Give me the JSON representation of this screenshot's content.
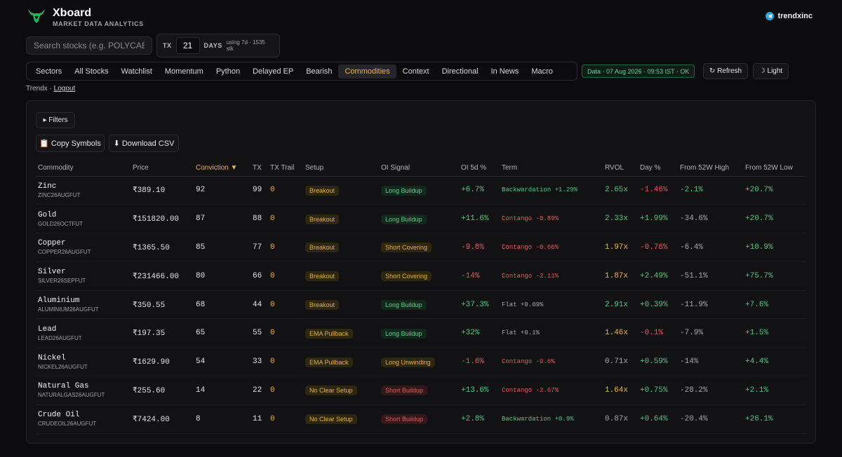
{
  "brand": {
    "name": "Xboard",
    "tagline": "MARKET DATA ANALYTICS",
    "handle": "trendxinc"
  },
  "search": {
    "placeholder": "Search stocks (e.g. POLYCAB).."
  },
  "tx": {
    "label": "TX",
    "value": "21",
    "days_label": "DAYS",
    "note": "using 7d · 1535 stk"
  },
  "nav": {
    "tabs": [
      "Sectors",
      "All Stocks",
      "Watchlist",
      "Momentum",
      "Python",
      "Delayed EP",
      "Bearish",
      "Commodities",
      "Context",
      "Directional",
      "In News",
      "Macro"
    ],
    "active": "Commodities"
  },
  "status": {
    "data": "Data · 07 Aug 2026 · 09:53 IST · OK"
  },
  "actions": {
    "refresh": "↻ Refresh",
    "light": "☽ Light",
    "filters": "▸ Filters",
    "copy": "📋 Copy Symbols",
    "csv": "⬇ Download CSV"
  },
  "user": {
    "prefix": "Trendx · ",
    "logout": "Logout"
  },
  "table": {
    "headers": [
      "Commodity",
      "Price",
      "Conviction ▼",
      "TX",
      "TX Trail",
      "Setup",
      "OI Signal",
      "OI 5d %",
      "Term",
      "RVOL",
      "Day %",
      "From 52W High",
      "From 52W Low"
    ],
    "rows": [
      {
        "name": "Zinc",
        "symbol": "ZINC26AUGFUT",
        "price": "₹389.10",
        "conviction": "92",
        "tx": "99",
        "trail": "0",
        "setup": "Breakout",
        "oi": "Long Buildup",
        "oi5d": "+6.7%",
        "term": "Backwardation +1.29%",
        "rvol": "2.65x",
        "day": "-1.46%",
        "high": "-2.1%",
        "low": "+20.7%"
      },
      {
        "name": "Gold",
        "symbol": "GOLD26OCTFUT",
        "price": "₹151820.00",
        "conviction": "87",
        "tx": "88",
        "trail": "0",
        "setup": "Breakout",
        "oi": "Long Buildup",
        "oi5d": "+11.6%",
        "term": "Contango -0.89%",
        "rvol": "2.33x",
        "day": "+1.99%",
        "high": "-34.6%",
        "low": "+20.7%"
      },
      {
        "name": "Copper",
        "symbol": "COPPER26AUGFUT",
        "price": "₹1365.50",
        "conviction": "85",
        "tx": "77",
        "trail": "0",
        "setup": "Breakout",
        "oi": "Short Covering",
        "oi5d": "-9.8%",
        "term": "Contango -0.66%",
        "rvol": "1.97x",
        "day": "-0.76%",
        "high": "-6.4%",
        "low": "+10.9%"
      },
      {
        "name": "Silver",
        "symbol": "SILVER26SEPFUT",
        "price": "₹231466.00",
        "conviction": "80",
        "tx": "66",
        "trail": "0",
        "setup": "Breakout",
        "oi": "Short Covering",
        "oi5d": "-14%",
        "term": "Contango -2.11%",
        "rvol": "1.87x",
        "day": "+2.49%",
        "high": "-51.1%",
        "low": "+75.7%"
      },
      {
        "name": "Aluminium",
        "symbol": "ALUMINIUM26AUGFUT",
        "price": "₹350.55",
        "conviction": "68",
        "tx": "44",
        "trail": "0",
        "setup": "Breakout",
        "oi": "Long Buildup",
        "oi5d": "+37.3%",
        "term": "Flat +0.09%",
        "rvol": "2.91x",
        "day": "+0.39%",
        "high": "-11.9%",
        "low": "+7.6%"
      },
      {
        "name": "Lead",
        "symbol": "LEAD26AUGFUT",
        "price": "₹197.35",
        "conviction": "65",
        "tx": "55",
        "trail": "0",
        "setup": "EMA Pullback",
        "oi": "Long Buildup",
        "oi5d": "+32%",
        "term": "Flat +0.1%",
        "rvol": "1.46x",
        "day": "-0.1%",
        "high": "-7.9%",
        "low": "+1.5%"
      },
      {
        "name": "Nickel",
        "symbol": "NICKEL26AUGFUT",
        "price": "₹1629.90",
        "conviction": "54",
        "tx": "33",
        "trail": "0",
        "setup": "EMA Pullback",
        "oi": "Long Unwinding",
        "oi5d": "-1.6%",
        "term": "Contango -0.6%",
        "rvol": "0.71x",
        "day": "+0.59%",
        "high": "-14%",
        "low": "+4.4%"
      },
      {
        "name": "Natural Gas",
        "symbol": "NATURALGAS26AUGFUT",
        "price": "₹255.60",
        "conviction": "14",
        "tx": "22",
        "trail": "0",
        "setup": "No Clear Setup",
        "oi": "Short Buildup",
        "oi5d": "+13.6%",
        "term": "Contango -2.67%",
        "rvol": "1.64x",
        "day": "+0.75%",
        "high": "-28.2%",
        "low": "+2.1%"
      },
      {
        "name": "Crude Oil",
        "symbol": "CRUDEOIL26AUGFUT",
        "price": "₹7424.00",
        "conviction": "8",
        "tx": "11",
        "trail": "0",
        "setup": "No Clear Setup",
        "oi": "Short Buildup",
        "oi5d": "+2.8%",
        "term": "Backwardation +0.9%",
        "rvol": "0.87x",
        "day": "+0.64%",
        "high": "-20.4%",
        "low": "+26.1%"
      }
    ]
  }
}
